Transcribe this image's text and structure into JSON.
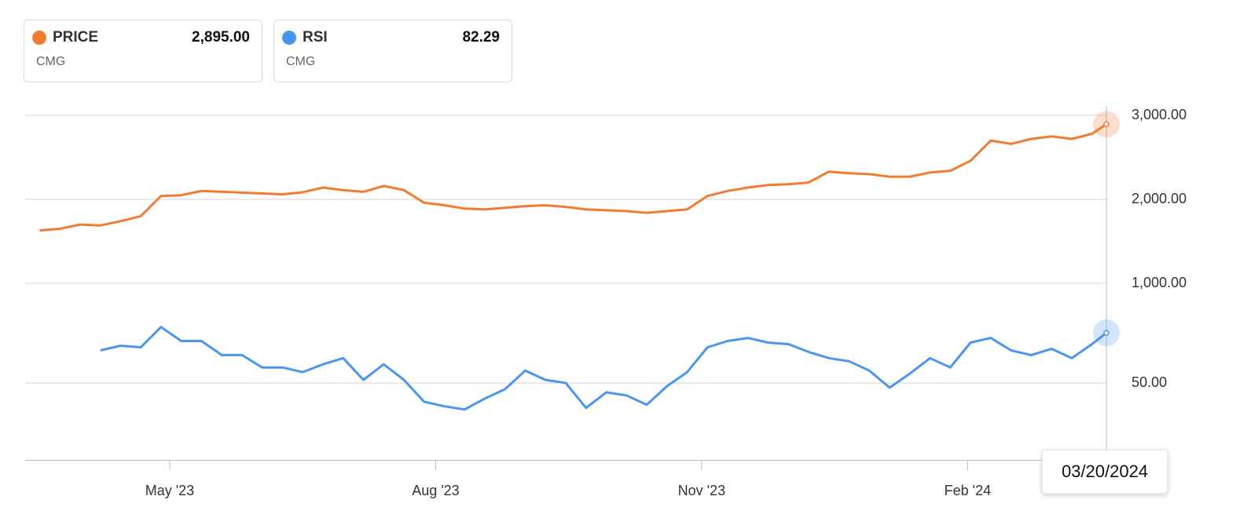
{
  "chart_data": {
    "type": "line",
    "x": [
      "2023-03-17",
      "2023-03-24",
      "2023-03-31",
      "2023-04-07",
      "2023-04-14",
      "2023-04-21",
      "2023-04-28",
      "2023-05-05",
      "2023-05-12",
      "2023-05-19",
      "2023-05-26",
      "2023-06-02",
      "2023-06-09",
      "2023-06-16",
      "2023-06-23",
      "2023-06-30",
      "2023-07-07",
      "2023-07-14",
      "2023-07-21",
      "2023-07-28",
      "2023-08-04",
      "2023-08-11",
      "2023-08-18",
      "2023-08-25",
      "2023-09-01",
      "2023-09-08",
      "2023-09-15",
      "2023-09-22",
      "2023-09-29",
      "2023-10-06",
      "2023-10-13",
      "2023-10-20",
      "2023-10-27",
      "2023-11-03",
      "2023-11-10",
      "2023-11-17",
      "2023-11-24",
      "2023-12-01",
      "2023-12-08",
      "2023-12-15",
      "2023-12-22",
      "2023-12-29",
      "2024-01-05",
      "2024-01-12",
      "2024-01-19",
      "2024-01-26",
      "2024-02-02",
      "2024-02-09",
      "2024-02-16",
      "2024-02-23",
      "2024-03-01",
      "2024-03-08",
      "2024-03-15",
      "2024-03-20"
    ],
    "xlim": [
      "2023-03-12",
      "2024-03-20"
    ],
    "xticks": [
      {
        "value": "2023-05-01",
        "label": "May '23"
      },
      {
        "value": "2023-08-01",
        "label": "Aug '23"
      },
      {
        "value": "2023-11-01",
        "label": "Nov '23"
      },
      {
        "value": "2024-02-01",
        "label": "Feb '24"
      }
    ],
    "tooltip": "03/20/2024",
    "ylim": [
      700,
      3200
    ],
    "yticks": [
      {
        "value": 1000,
        "label": "1,000.00"
      },
      {
        "value": 2000,
        "label": "2,000.00"
      },
      {
        "value": 3000,
        "label": "3,000.00"
      }
    ],
    "y2lim": [
      0,
      100
    ],
    "y2ticks": [
      {
        "value": 50,
        "label": "50.00"
      }
    ],
    "grid": true,
    "series": [
      {
        "name": "PRICE",
        "symbol": "CMG",
        "color": "#ef7d31",
        "last_value": {
          "value": 2895,
          "label": "2,895.00"
        },
        "values": [
          1630,
          1650,
          1700,
          1690,
          1740,
          1800,
          2040,
          2050,
          2100,
          2090,
          2080,
          2070,
          2060,
          2085,
          2140,
          2110,
          2090,
          2160,
          2110,
          1960,
          1930,
          1890,
          1880,
          1900,
          1920,
          1930,
          1910,
          1880,
          1870,
          1860,
          1840,
          1860,
          1880,
          2040,
          2100,
          2140,
          2170,
          2180,
          2200,
          2330,
          2310,
          2300,
          2270,
          2270,
          2320,
          2340,
          2460,
          2700,
          2660,
          2720,
          2750,
          2720,
          2780,
          2895
        ]
      },
      {
        "name": "RSI",
        "symbol": "CMG",
        "color": "#4a96ef",
        "axis": "y2",
        "last_value": 82.29,
        "values": [
          null,
          null,
          null,
          71,
          74,
          73,
          86,
          77,
          77,
          68,
          68,
          60,
          60,
          57,
          62,
          66,
          52,
          62,
          52,
          38,
          35,
          33,
          40,
          46,
          58,
          52,
          50,
          34,
          44,
          42,
          36,
          48,
          57,
          73,
          77,
          79,
          76,
          75,
          70,
          66,
          64,
          58,
          47,
          56,
          66,
          60,
          76,
          79,
          71,
          68,
          72,
          66,
          75,
          82.29
        ]
      }
    ]
  }
}
